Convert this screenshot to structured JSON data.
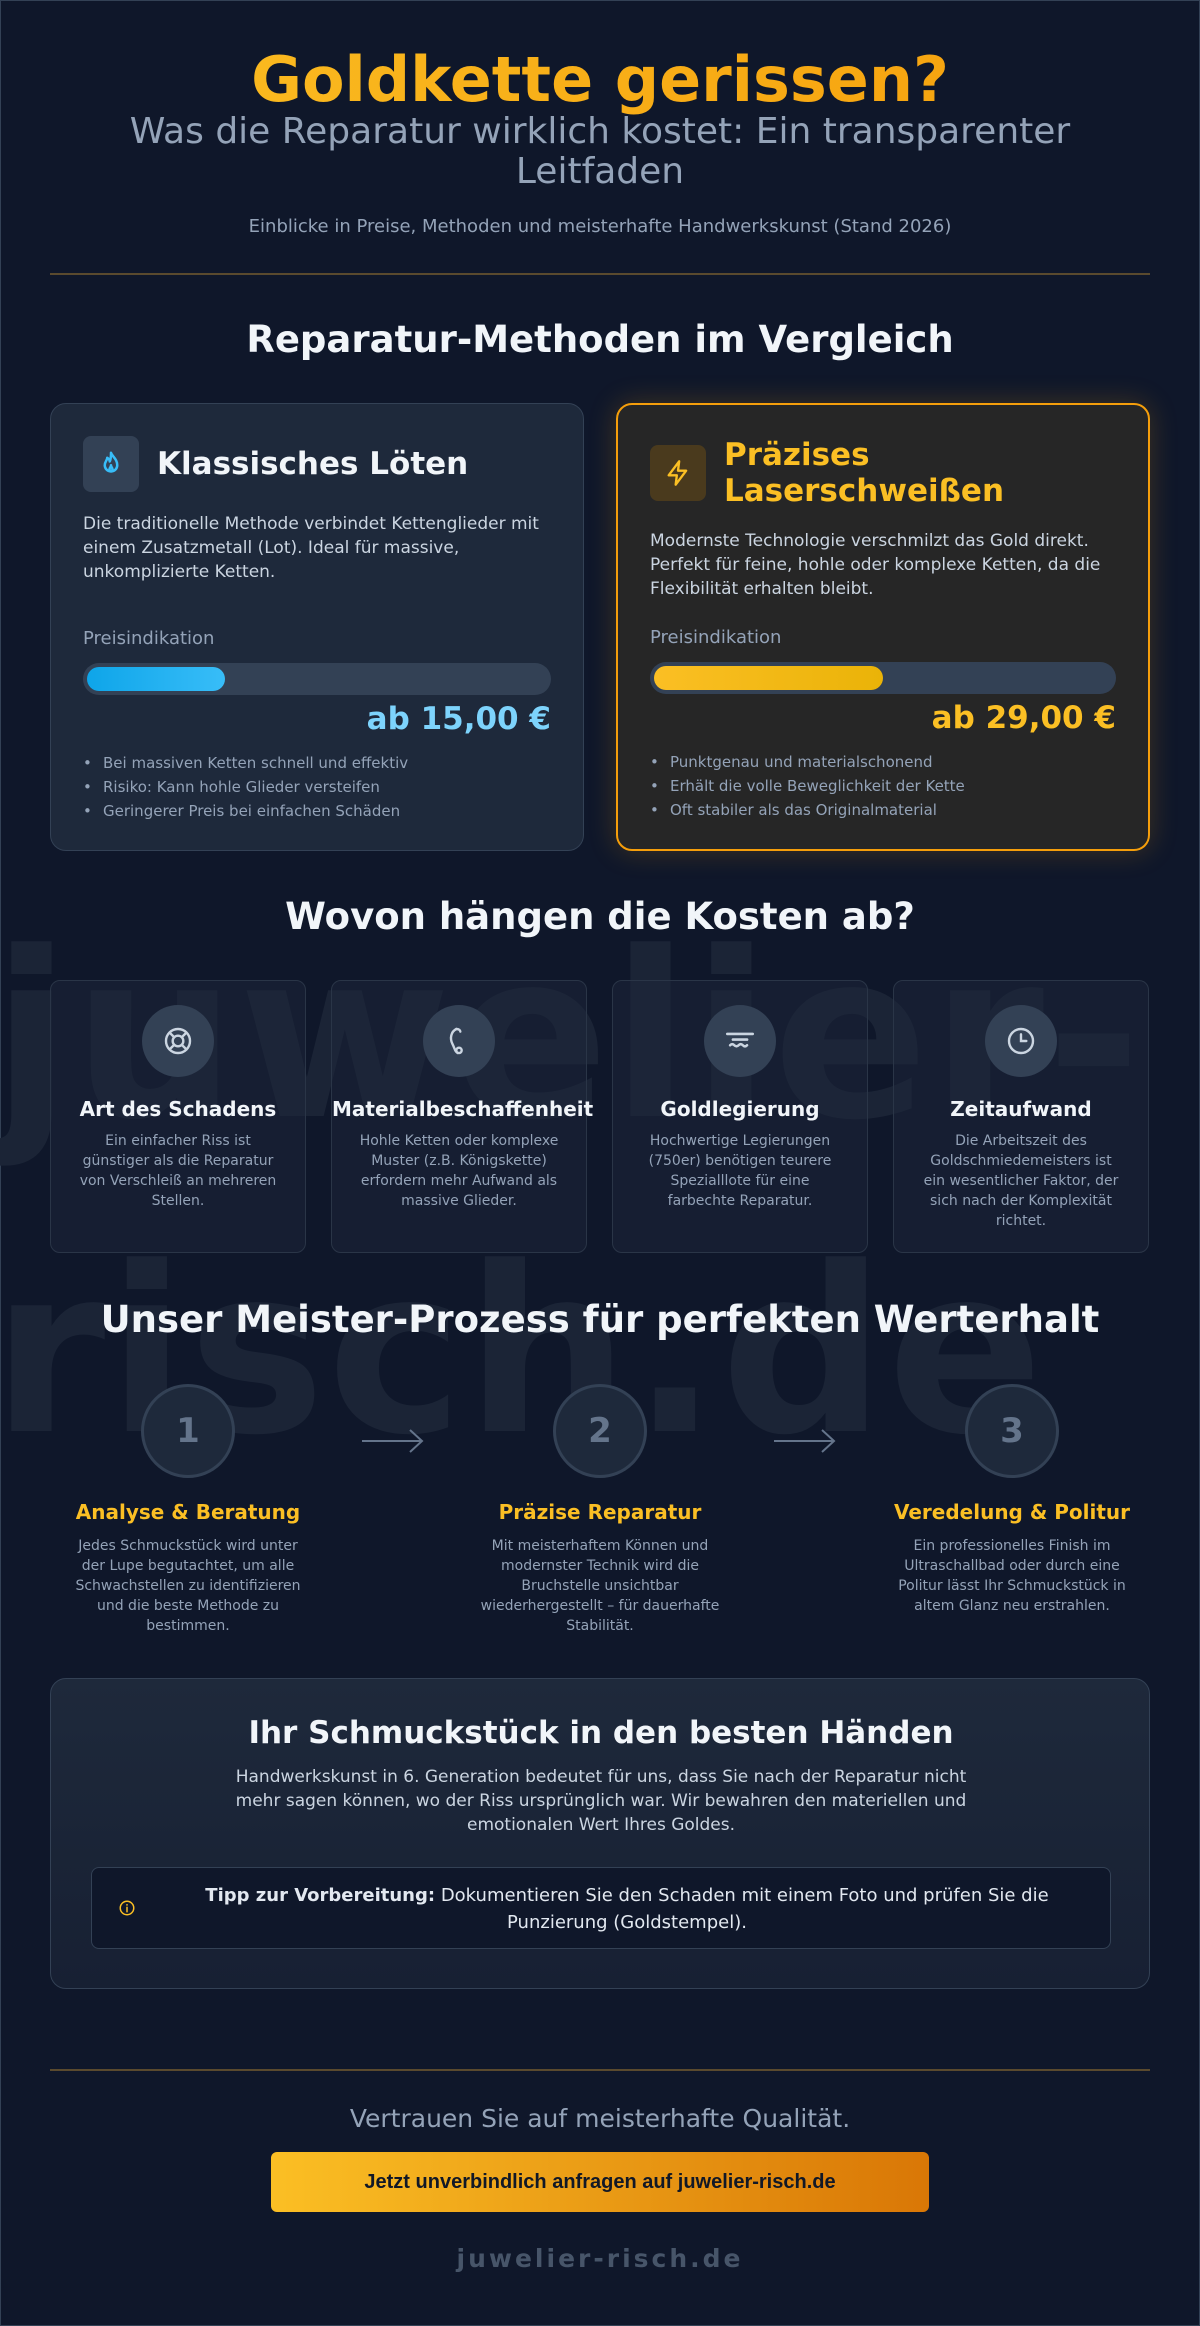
{
  "header": {
    "title": "Goldkette gerissen?",
    "subtitle": "Was die Reparatur wirklich kostet: Ein transparenter Leitfaden",
    "note": "Einblicke in Preise, Methoden und meisterhafte Handwerkskunst (Stand 2026)"
  },
  "watermark": {
    "line1": "juwelier-",
    "line2": "risch.de"
  },
  "methods": {
    "title": "Reparatur-Methoden im Vergleich",
    "classic": {
      "icon": "flame-icon",
      "title": "Klassisches Löten",
      "description": "Die traditionelle Methode verbindet Kettenglieder mit einem Zusatzmetall (Lot). Ideal für massive, unkomplizierte Ketten.",
      "price_label": "Preisindikation",
      "price_level": 0.3,
      "price": "ab 15,00 €",
      "points": [
        "Bei massiven Ketten schnell und effektiv",
        "Risiko: Kann hohle Glieder versteifen",
        "Geringerer Preis bei einfachen Schäden"
      ]
    },
    "laser": {
      "icon": "lightning-icon",
      "title": "Präzises Laserschweißen",
      "description": "Modernste Technologie verschmilzt das Gold direkt. Perfekt für feine, hohle oder komplexe Ketten, da die Flexibilität erhalten bleibt.",
      "price_label": "Preisindikation",
      "price_level": 0.5,
      "price": "ab 29,00 €",
      "points": [
        "Punktgenau und materialschonend",
        "Erhält die volle Beweglichkeit der Kette",
        "Oft stabiler als das Originalmaterial"
      ]
    }
  },
  "factors": {
    "title": "Wovon hängen die Kosten ab?",
    "items": [
      {
        "icon": "lifebuoy-icon",
        "title": "Art des Schadens",
        "description": "Ein einfacher Riss ist günstiger als die Reparatur von Verschleiß an mehreren Stellen."
      },
      {
        "icon": "chain-icon",
        "title": "Materialbeschaffenheit",
        "description": "Hohle Ketten oder komplexe Muster (z.B. Königskette) erfordern mehr Aufwand als massive Glieder."
      },
      {
        "icon": "alloy-icon",
        "title": "Goldlegierung",
        "description": "Hochwertige Legierungen (750er) benötigen teurere Spezialllote für eine farbechte Reparatur."
      },
      {
        "icon": "clock-icon",
        "title": "Zeitaufwand",
        "description": "Die Arbeitszeit des Goldschmiedemeisters ist ein wesentlicher Faktor, der sich nach der Komplexität richtet."
      }
    ]
  },
  "process": {
    "title": "Unser Meister-Prozess für perfekten Werterhalt",
    "steps": [
      {
        "number": "1",
        "title": "Analyse & Beratung",
        "description": "Jedes Schmuckstück wird unter der Lupe begutachtet, um alle Schwachstellen zu identifizieren und die beste Methode zu bestimmen."
      },
      {
        "number": "2",
        "title": "Präzise Reparatur",
        "description": "Mit meisterhaftem Können und modernster Technik wird die Bruchstelle unsichtbar wiederhergestellt – für dauerhafte Stabilität."
      },
      {
        "number": "3",
        "title": "Veredelung & Politur",
        "description": "Ein professionelles Finish im Ultraschallbad oder durch eine Politur lässt Ihr Schmuckstück in altem Glanz neu erstrahlen."
      }
    ]
  },
  "trust": {
    "title": "Ihr Schmuckstück in den besten Händen",
    "text": "Handwerkskunst in 6. Generation bedeutet für uns, dass Sie nach der Reparatur nicht mehr sagen können, wo der Riss ursprünglich war. Wir bewahren den materiellen und emotionalen Wert Ihres Goldes.",
    "tip_label": "Tipp zur Vorbereitung:",
    "tip_text": "Dokumentieren Sie den Schaden mit einem Foto und prüfen Sie die Punzierung (Goldstempel)."
  },
  "footer": {
    "claim": "Vertrauen Sie auf meisterhafte Qualität.",
    "cta": "Jetzt unverbindlich anfragen auf juwelier-risch.de",
    "domain": "juwelier-risch.de"
  },
  "colors": {
    "background": "#0f172a",
    "gold": "#fbbf24",
    "blue": "#38bdf8",
    "card": "#1e293b"
  }
}
